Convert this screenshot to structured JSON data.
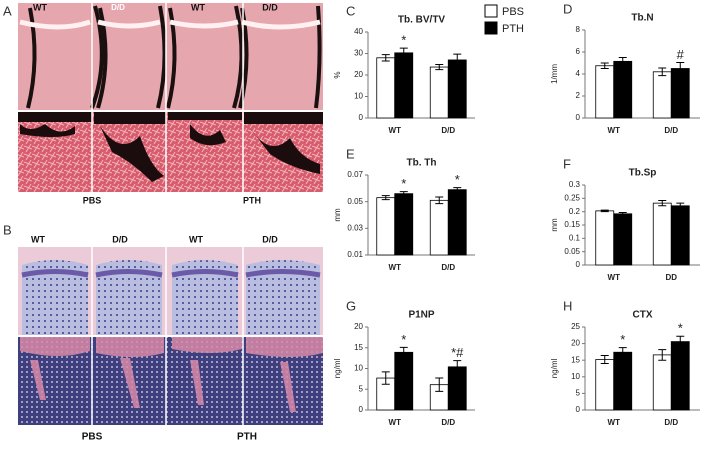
{
  "figure_a": {
    "label": "A",
    "columns": [
      "WT",
      "D/D",
      "WT",
      "D/D"
    ],
    "groups": [
      "PBS",
      "PTH"
    ]
  },
  "figure_b": {
    "label": "B",
    "columns": [
      "WT",
      "D/D",
      "WT",
      "D/D"
    ],
    "groups": [
      "PBS",
      "PTH"
    ]
  },
  "chart_data": [
    {
      "type": "bar",
      "label": "C",
      "title": "Tb. BV/TV",
      "y_label": "%",
      "categories": [
        "WT",
        "D/D"
      ],
      "legend": "outside-top-right",
      "series": [
        {
          "name": "PBS",
          "color": "#ffffff",
          "values": [
            28,
            23.7
          ],
          "errors": [
            1.5,
            1.2
          ]
        },
        {
          "name": "PTH",
          "color": "#000000",
          "values": [
            30.3,
            27
          ],
          "errors": [
            2.2,
            2.7
          ],
          "annotations": [
            "*",
            null
          ]
        }
      ],
      "ylim": [
        0,
        40
      ],
      "yticks": [
        0,
        10,
        20,
        30,
        40
      ]
    },
    {
      "type": "bar",
      "label": "D",
      "title": "Tb.N",
      "y_label": "1/mm",
      "categories": [
        "WT",
        "D/D"
      ],
      "series": [
        {
          "color": "#ffffff",
          "values": [
            4.75,
            4.2
          ],
          "errors": [
            0.25,
            0.35
          ]
        },
        {
          "color": "#000000",
          "values": [
            5.15,
            4.5
          ],
          "errors": [
            0.35,
            0.55
          ],
          "annotations": [
            null,
            "#"
          ]
        }
      ],
      "ylim": [
        0,
        8
      ],
      "yticks": [
        0,
        2,
        4,
        6,
        8
      ]
    },
    {
      "type": "bar",
      "label": "E",
      "title": "Tb. Th",
      "y_label": "mm",
      "categories": [
        "WT",
        "D/D"
      ],
      "series": [
        {
          "color": "#ffffff",
          "values": [
            0.053,
            0.051
          ],
          "errors": [
            0.0015,
            0.0025
          ]
        },
        {
          "color": "#000000",
          "values": [
            0.056,
            0.059
          ],
          "errors": [
            0.0015,
            0.0015
          ],
          "annotations": [
            "*",
            "*"
          ]
        }
      ],
      "ylim": [
        0.01,
        0.07
      ],
      "yticks": [
        0.01,
        0.03,
        0.05,
        0.07
      ]
    },
    {
      "type": "bar",
      "label": "F",
      "title": "Tb.Sp",
      "y_label": "mm",
      "categories": [
        "WT",
        "DD"
      ],
      "series": [
        {
          "color": "#ffffff",
          "values": [
            0.203,
            0.232
          ],
          "errors": [
            0.003,
            0.01
          ]
        },
        {
          "color": "#000000",
          "values": [
            0.192,
            0.222
          ],
          "errors": [
            0.005,
            0.01
          ]
        }
      ],
      "ylim": [
        0,
        0.3
      ],
      "yticks": [
        0,
        0.05,
        0.1,
        0.15,
        0.2,
        0.25,
        0.3
      ]
    },
    {
      "type": "bar",
      "label": "G",
      "title": "P1NP",
      "y_label": "ng/ml",
      "categories": [
        "WT",
        "D/D"
      ],
      "series": [
        {
          "color": "#ffffff",
          "values": [
            7.7,
            6.1
          ],
          "errors": [
            1.5,
            1.6
          ]
        },
        {
          "color": "#000000",
          "values": [
            13.9,
            10.4
          ],
          "errors": [
            1.2,
            1.5
          ],
          "annotations": [
            "*",
            "*#"
          ]
        }
      ],
      "ylim": [
        0,
        20
      ],
      "yticks": [
        0,
        5,
        10,
        15,
        20
      ]
    },
    {
      "type": "bar",
      "label": "H",
      "title": "CTX",
      "y_label": "ng/ml",
      "categories": [
        "WT",
        "D/D"
      ],
      "series": [
        {
          "color": "#ffffff",
          "values": [
            15.2,
            16.6
          ],
          "errors": [
            1.2,
            1.6
          ]
        },
        {
          "color": "#000000",
          "values": [
            17.4,
            20.6
          ],
          "errors": [
            1.4,
            1.6
          ],
          "annotations": [
            "*",
            "*"
          ]
        }
      ],
      "ylim": [
        0,
        25
      ],
      "yticks": [
        0,
        5,
        10,
        15,
        20,
        25
      ]
    }
  ]
}
